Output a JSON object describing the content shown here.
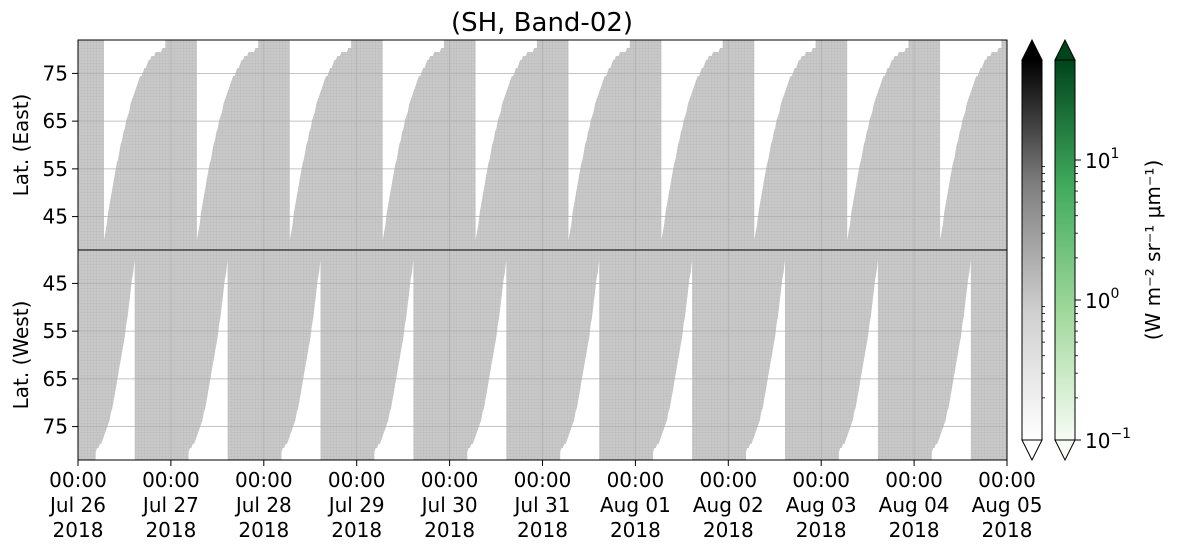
{
  "chart_data": {
    "type": "heatmap",
    "title": "(SH, Band-02)",
    "x_tick_labels": [
      {
        "time": "00:00",
        "date": "Jul 26",
        "year": "2018"
      },
      {
        "time": "00:00",
        "date": "Jul 27",
        "year": "2018"
      },
      {
        "time": "00:00",
        "date": "Jul 28",
        "year": "2018"
      },
      {
        "time": "00:00",
        "date": "Jul 29",
        "year": "2018"
      },
      {
        "time": "00:00",
        "date": "Jul 30",
        "year": "2018"
      },
      {
        "time": "00:00",
        "date": "Jul 31",
        "year": "2018"
      },
      {
        "time": "00:00",
        "date": "Aug 01",
        "year": "2018"
      },
      {
        "time": "00:00",
        "date": "Aug 02",
        "year": "2018"
      },
      {
        "time": "00:00",
        "date": "Aug 03",
        "year": "2018"
      },
      {
        "time": "00:00",
        "date": "Aug 04",
        "year": "2018"
      },
      {
        "time": "00:00",
        "date": "Aug 05",
        "year": "2018"
      }
    ],
    "xlim": [
      "2018-07-26T00:00",
      "2018-08-05T00:00"
    ],
    "panels": [
      {
        "name": "east",
        "ylabel": "Lat. (East)",
        "yticks": [
          45,
          55,
          65,
          75
        ],
        "ylim": [
          38,
          82
        ],
        "inverted": false,
        "data_min_lat": 38,
        "data_max_lat": 82,
        "boundary_lat_min": 40,
        "boundary_lat_max": 80
      },
      {
        "name": "west",
        "ylabel": "Lat. (West)",
        "yticks": [
          75,
          65,
          55,
          45
        ],
        "ylim": [
          82,
          38
        ],
        "inverted": true,
        "data_min_lat": 38,
        "data_max_lat": 82,
        "boundary_lat_min": 40,
        "boundary_lat_max": 80
      }
    ],
    "colorbars": [
      {
        "name": "gray",
        "colors": [
          "#ffffff",
          "#d0d0d0",
          "#808080",
          "#000000"
        ],
        "extend": "both"
      },
      {
        "name": "greens",
        "colors": [
          "#f7fcf5",
          "#a1d99b",
          "#41ab5d",
          "#00441b"
        ],
        "extend": "both",
        "ticks": [
          "10",
          "10",
          "10"
        ],
        "tick_exponents": [
          "−1",
          "0",
          "1"
        ]
      }
    ],
    "colorbar_label": "(W m⁻² sr⁻¹ μm⁻¹)",
    "grid": true,
    "fill_color": "#c8c8c8"
  }
}
